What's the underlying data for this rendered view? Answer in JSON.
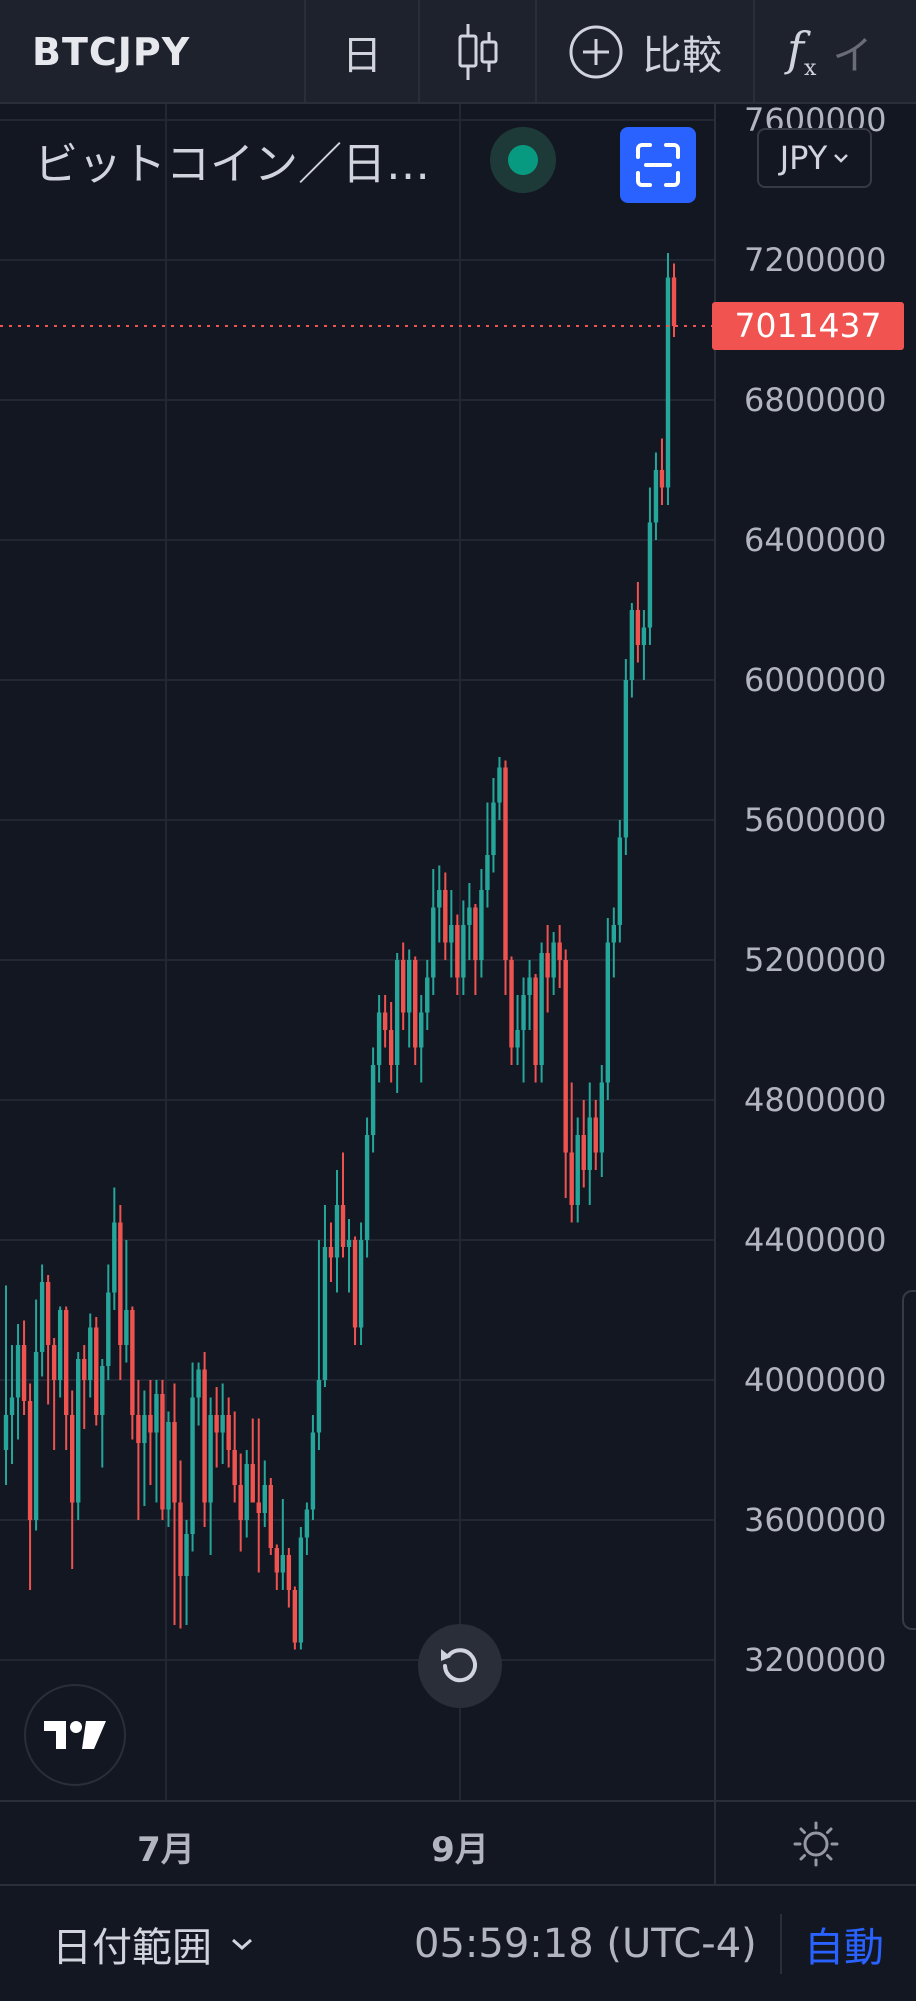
{
  "toolbar": {
    "symbol": "BTCJPY",
    "interval": "日",
    "compare_label": "比較",
    "indicators_more": "イ"
  },
  "legend": {
    "title": "ビットコイン／日…",
    "currency": "JPY"
  },
  "last_price": "7011437",
  "colors": {
    "background": "#131722",
    "up": "#26a69a",
    "down": "#ef5350",
    "accent": "#2962ff",
    "status": "#089981"
  },
  "chart_data": {
    "type": "candlestick",
    "symbol": "BTCJPY",
    "currency": "JPY",
    "ylim": [
      3000000,
      7800000
    ],
    "y_ticks": [
      3200000,
      3600000,
      4000000,
      4400000,
      4800000,
      5200000,
      5600000,
      6000000,
      6400000,
      6800000,
      7200000,
      7600000
    ],
    "y_tick_labels": [
      "3200000",
      "3600000",
      "4000000",
      "4400000",
      "4800000",
      "5200000",
      "5600000",
      "6000000",
      "6400000",
      "6800000",
      "7200000",
      "7600000"
    ],
    "x_tick_labels": [
      "7月",
      "9月"
    ],
    "last_price": 7011437,
    "grid": true,
    "candles": [
      [
        3800000,
        4270000,
        3700000,
        3900000
      ],
      [
        3900000,
        4100000,
        3760000,
        3950000
      ],
      [
        3950000,
        4160000,
        3830000,
        4100000
      ],
      [
        4100000,
        4170000,
        3900000,
        3940000
      ],
      [
        3940000,
        3990000,
        3400000,
        3600000
      ],
      [
        3600000,
        4230000,
        3570000,
        4080000
      ],
      [
        4080000,
        4330000,
        4010000,
        4280000
      ],
      [
        4280000,
        4300000,
        3930000,
        4100000
      ],
      [
        4100000,
        4120000,
        3800000,
        4000000
      ],
      [
        4000000,
        4210000,
        3950000,
        4200000
      ],
      [
        4200000,
        4210000,
        3800000,
        3900000
      ],
      [
        3900000,
        3970000,
        3460000,
        3650000
      ],
      [
        3650000,
        4080000,
        3600000,
        4060000
      ],
      [
        4060000,
        4100000,
        3860000,
        4000000
      ],
      [
        4000000,
        4190000,
        3950000,
        4150000
      ],
      [
        4150000,
        4180000,
        3870000,
        3900000
      ],
      [
        3900000,
        4060000,
        3750000,
        4040000
      ],
      [
        4040000,
        4330000,
        4000000,
        4250000
      ],
      [
        4250000,
        4550000,
        4200000,
        4450000
      ],
      [
        4450000,
        4500000,
        4000000,
        4100000
      ],
      [
        4100000,
        4400000,
        4050000,
        4200000
      ],
      [
        4200000,
        4210000,
        3830000,
        3900000
      ],
      [
        3900000,
        4000000,
        3600000,
        3820000
      ],
      [
        3820000,
        3970000,
        3640000,
        3900000
      ],
      [
        3900000,
        4000000,
        3700000,
        3850000
      ],
      [
        3850000,
        4000000,
        3650000,
        3960000
      ],
      [
        3960000,
        4000000,
        3600000,
        3630000
      ],
      [
        3630000,
        3910000,
        3580000,
        3880000
      ],
      [
        3880000,
        3990000,
        3300000,
        3650000
      ],
      [
        3650000,
        3770000,
        3290000,
        3440000
      ],
      [
        3440000,
        3600000,
        3300000,
        3560000
      ],
      [
        3560000,
        4050000,
        3510000,
        3950000
      ],
      [
        3950000,
        4050000,
        3870000,
        4030000
      ],
      [
        4030000,
        4080000,
        3580000,
        3650000
      ],
      [
        3650000,
        3950000,
        3500000,
        3900000
      ],
      [
        3900000,
        3980000,
        3750000,
        3850000
      ],
      [
        3850000,
        3990000,
        3760000,
        3900000
      ],
      [
        3900000,
        3950000,
        3750000,
        3800000
      ],
      [
        3800000,
        3910000,
        3650000,
        3700000
      ],
      [
        3700000,
        3790000,
        3510000,
        3600000
      ],
      [
        3600000,
        3800000,
        3550000,
        3760000
      ],
      [
        3760000,
        3890000,
        3650000,
        3650000
      ],
      [
        3650000,
        3890000,
        3450000,
        3620000
      ],
      [
        3620000,
        3770000,
        3580000,
        3700000
      ],
      [
        3700000,
        3720000,
        3500000,
        3520000
      ],
      [
        3520000,
        3530000,
        3400000,
        3450000
      ],
      [
        3450000,
        3660000,
        3400000,
        3500000
      ],
      [
        3500000,
        3520000,
        3350000,
        3400000
      ],
      [
        3400000,
        3410000,
        3230000,
        3250000
      ],
      [
        3250000,
        3580000,
        3230000,
        3550000
      ],
      [
        3550000,
        3650000,
        3500000,
        3630000
      ],
      [
        3630000,
        3900000,
        3600000,
        3850000
      ],
      [
        3850000,
        4400000,
        3800000,
        4000000
      ],
      [
        4000000,
        4500000,
        3980000,
        4380000
      ],
      [
        4380000,
        4450000,
        4280000,
        4350000
      ],
      [
        4350000,
        4600000,
        4250000,
        4500000
      ],
      [
        4500000,
        4650000,
        4350000,
        4380000
      ],
      [
        4380000,
        4460000,
        4250000,
        4400000
      ],
      [
        4400000,
        4410000,
        4100000,
        4150000
      ],
      [
        4150000,
        4450000,
        4100000,
        4400000
      ],
      [
        4400000,
        4750000,
        4350000,
        4700000
      ],
      [
        4700000,
        4950000,
        4650000,
        4900000
      ],
      [
        4900000,
        5100000,
        4850000,
        5050000
      ],
      [
        5050000,
        5100000,
        4950000,
        5000000
      ],
      [
        5000000,
        5080000,
        4850000,
        4900000
      ],
      [
        4900000,
        5220000,
        4820000,
        5200000
      ],
      [
        5200000,
        5250000,
        5000000,
        5050000
      ],
      [
        5050000,
        5230000,
        4950000,
        5200000
      ],
      [
        5200000,
        5210000,
        4900000,
        4950000
      ],
      [
        4950000,
        5100000,
        4850000,
        5050000
      ],
      [
        5050000,
        5200000,
        5000000,
        5150000
      ],
      [
        5150000,
        5460000,
        5100000,
        5350000
      ],
      [
        5350000,
        5470000,
        5250000,
        5400000
      ],
      [
        5400000,
        5450000,
        5200000,
        5250000
      ],
      [
        5250000,
        5400000,
        5150000,
        5300000
      ],
      [
        5300000,
        5330000,
        5100000,
        5150000
      ],
      [
        5150000,
        5370000,
        5100000,
        5300000
      ],
      [
        5300000,
        5420000,
        5200000,
        5350000
      ],
      [
        5350000,
        5360000,
        5100000,
        5200000
      ],
      [
        5200000,
        5460000,
        5150000,
        5400000
      ],
      [
        5400000,
        5650000,
        5350000,
        5500000
      ],
      [
        5500000,
        5720000,
        5450000,
        5650000
      ],
      [
        5650000,
        5780000,
        5600000,
        5750000
      ],
      [
        5750000,
        5770000,
        5100000,
        5200000
      ],
      [
        5200000,
        5210000,
        4900000,
        4950000
      ],
      [
        4950000,
        5100000,
        4900000,
        5000000
      ],
      [
        5000000,
        5150000,
        4850000,
        5100000
      ],
      [
        5100000,
        5200000,
        5000000,
        5150000
      ],
      [
        5150000,
        5160000,
        4850000,
        4900000
      ],
      [
        4900000,
        5250000,
        4850000,
        5220000
      ],
      [
        5220000,
        5300000,
        5050000,
        5150000
      ],
      [
        5150000,
        5280000,
        5100000,
        5250000
      ],
      [
        5250000,
        5300000,
        5120000,
        5200000
      ],
      [
        5200000,
        5230000,
        4520000,
        4650000
      ],
      [
        4650000,
        4850000,
        4450000,
        4500000
      ],
      [
        4500000,
        4750000,
        4450000,
        4700000
      ],
      [
        4700000,
        4800000,
        4550000,
        4600000
      ],
      [
        4600000,
        4850000,
        4500000,
        4750000
      ],
      [
        4750000,
        4800000,
        4600000,
        4650000
      ],
      [
        4650000,
        4900000,
        4580000,
        4850000
      ],
      [
        4850000,
        5320000,
        4800000,
        5250000
      ],
      [
        5250000,
        5350000,
        5150000,
        5300000
      ],
      [
        5300000,
        5600000,
        5250000,
        5550000
      ],
      [
        5550000,
        6060000,
        5500000,
        6000000
      ],
      [
        6000000,
        6220000,
        5950000,
        6200000
      ],
      [
        6200000,
        6280000,
        6050000,
        6100000
      ],
      [
        6100000,
        6200000,
        6000000,
        6150000
      ],
      [
        6150000,
        6550000,
        6100000,
        6450000
      ],
      [
        6450000,
        6650000,
        6400000,
        6600000
      ],
      [
        6600000,
        6690000,
        6500000,
        6550000
      ],
      [
        6550000,
        7220000,
        6500000,
        7150000
      ],
      [
        7150000,
        7190000,
        6980000,
        7011437
      ]
    ]
  },
  "time_axis": {
    "labels": [
      "7月",
      "9月"
    ]
  },
  "bottom_bar": {
    "range_label": "日付範囲",
    "clock": "05:59:18 (UTC-4)",
    "auto_label": "自動"
  }
}
